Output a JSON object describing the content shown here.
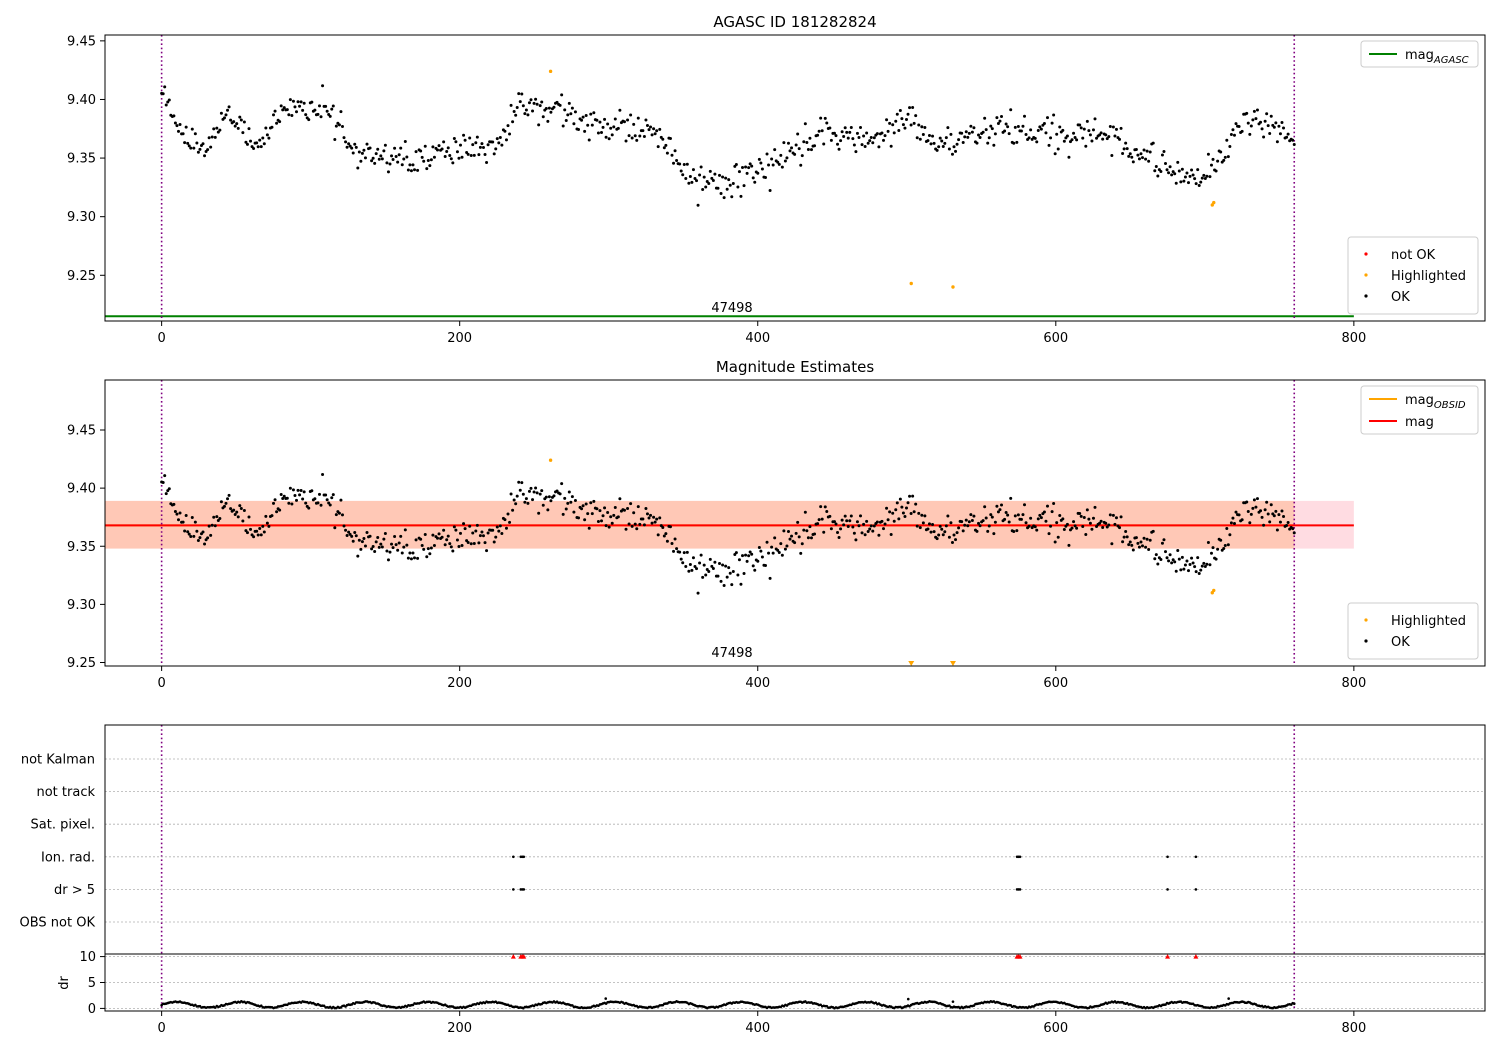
{
  "chart_data": [
    {
      "type": "scatter",
      "title": "AGASC ID 181282824",
      "xlim": [
        -38,
        888
      ],
      "ylim": [
        9.211,
        9.455
      ],
      "xticks": [
        0,
        200,
        400,
        600,
        800
      ],
      "yticks": [
        "9.25",
        "9.30",
        "9.35",
        "9.40",
        "9.45"
      ],
      "obsid_label": "47498",
      "obsid_label_x": 380,
      "obs_boundaries": [
        0,
        760
      ],
      "mag_agasc": 9.215,
      "legend_lines": [
        {
          "label": "mag",
          "sub": "AGASC",
          "color": "#008000"
        }
      ],
      "legend_markers": [
        {
          "label": "not OK",
          "color": "#ff0000"
        },
        {
          "label": "Highlighted",
          "color": "#ffa500"
        },
        {
          "label": "OK",
          "color": "#000000"
        }
      ],
      "series": [
        {
          "name": "OK",
          "color": "#000000",
          "anchors": [
            [
              0,
              9.405
            ],
            [
              15,
              9.37
            ],
            [
              30,
              9.36
            ],
            [
              45,
              9.39
            ],
            [
              60,
              9.36
            ],
            [
              90,
              9.395
            ],
            [
              110,
              9.39
            ],
            [
              130,
              9.355
            ],
            [
              165,
              9.35
            ],
            [
              195,
              9.355
            ],
            [
              225,
              9.36
            ],
            [
              245,
              9.4
            ],
            [
              290,
              9.38
            ],
            [
              330,
              9.375
            ],
            [
              355,
              9.335
            ],
            [
              380,
              9.33
            ],
            [
              410,
              9.345
            ],
            [
              440,
              9.37
            ],
            [
              480,
              9.365
            ],
            [
              500,
              9.385
            ],
            [
              520,
              9.36
            ],
            [
              560,
              9.375
            ],
            [
              600,
              9.37
            ],
            [
              640,
              9.37
            ],
            [
              660,
              9.35
            ],
            [
              700,
              9.33
            ],
            [
              725,
              9.38
            ],
            [
              745,
              9.375
            ],
            [
              760,
              9.36
            ]
          ],
          "n": 740,
          "noise": 0.009
        },
        {
          "name": "Highlighted",
          "color": "#ffa500",
          "points": [
            [
              261,
              9.424
            ],
            [
              503,
              9.243
            ],
            [
              531,
              9.24
            ],
            [
              705,
              9.31
            ],
            [
              706,
              9.312
            ]
          ]
        }
      ]
    },
    {
      "type": "scatter",
      "title": "Magnitude Estimates",
      "xlim": [
        -38,
        888
      ],
      "ylim": [
        9.247,
        9.493
      ],
      "xticks": [
        0,
        200,
        400,
        600,
        800
      ],
      "yticks": [
        "9.25",
        "9.30",
        "9.35",
        "9.40",
        "9.45"
      ],
      "obsid_label": "47498",
      "obsid_label_x": 380,
      "obs_boundaries": [
        0,
        760
      ],
      "mag": 9.368,
      "mag_band": [
        9.348,
        9.389
      ],
      "mag_obsid": 9.368,
      "mag_obsid_band": [
        9.348,
        9.389
      ],
      "legend_lines": [
        {
          "label": "mag",
          "sub": "OBSID",
          "color": "#ffa500"
        },
        {
          "label": "mag",
          "sub": "",
          "color": "#ff0000"
        }
      ],
      "legend_markers": [
        {
          "label": "Highlighted",
          "color": "#ffa500"
        },
        {
          "label": "OK",
          "color": "#000000"
        }
      ],
      "series": [
        {
          "name": "OK",
          "color": "#000000",
          "anchors": [
            [
              0,
              9.405
            ],
            [
              15,
              9.37
            ],
            [
              30,
              9.36
            ],
            [
              45,
              9.39
            ],
            [
              60,
              9.36
            ],
            [
              90,
              9.395
            ],
            [
              110,
              9.39
            ],
            [
              130,
              9.355
            ],
            [
              165,
              9.35
            ],
            [
              195,
              9.355
            ],
            [
              225,
              9.36
            ],
            [
              245,
              9.4
            ],
            [
              290,
              9.38
            ],
            [
              330,
              9.375
            ],
            [
              355,
              9.335
            ],
            [
              380,
              9.33
            ],
            [
              410,
              9.345
            ],
            [
              440,
              9.37
            ],
            [
              480,
              9.365
            ],
            [
              500,
              9.385
            ],
            [
              520,
              9.36
            ],
            [
              560,
              9.375
            ],
            [
              600,
              9.37
            ],
            [
              640,
              9.37
            ],
            [
              660,
              9.35
            ],
            [
              700,
              9.33
            ],
            [
              725,
              9.38
            ],
            [
              745,
              9.375
            ],
            [
              760,
              9.36
            ]
          ],
          "n": 740,
          "noise": 0.009
        },
        {
          "name": "Highlighted",
          "color": "#ffa500",
          "points": [
            [
              261,
              9.424
            ],
            [
              705,
              9.31
            ],
            [
              706,
              9.312
            ]
          ]
        }
      ],
      "below_range_markers": [
        503,
        531
      ]
    },
    {
      "type": "scatter",
      "title": "",
      "xlim": [
        -38,
        888
      ],
      "xticks": [
        0,
        200,
        400,
        600,
        800
      ],
      "obs_boundaries": [
        0,
        760
      ],
      "flag_labels": [
        "not Kalman",
        "not track",
        "Sat. pixel.",
        "Ion. rad.",
        "dr > 5",
        "OBS not OK"
      ],
      "flag_points": {
        "Ion. rad.": [
          236,
          241,
          242,
          243,
          574,
          575,
          576,
          675,
          694
        ],
        "dr > 5": [
          236,
          241,
          242,
          243,
          574,
          575,
          576,
          675,
          694
        ]
      },
      "dr_label": "dr",
      "dr_ylim": [
        -0.5,
        10.5
      ],
      "dr_yticks": [
        "0",
        "5",
        "10"
      ],
      "dr_clipped": [
        236,
        241,
        242,
        243,
        574,
        575,
        576,
        675,
        694
      ],
      "dr_series": {
        "name": "dr",
        "color": "#000000",
        "n": 740,
        "base": 0.7,
        "amplitude": 0.55,
        "period": 42,
        "spikes": [
          [
            501,
            1.8
          ],
          [
            531,
            1.3
          ],
          [
            298,
            1.9
          ],
          [
            716,
            1.9
          ]
        ]
      }
    }
  ]
}
